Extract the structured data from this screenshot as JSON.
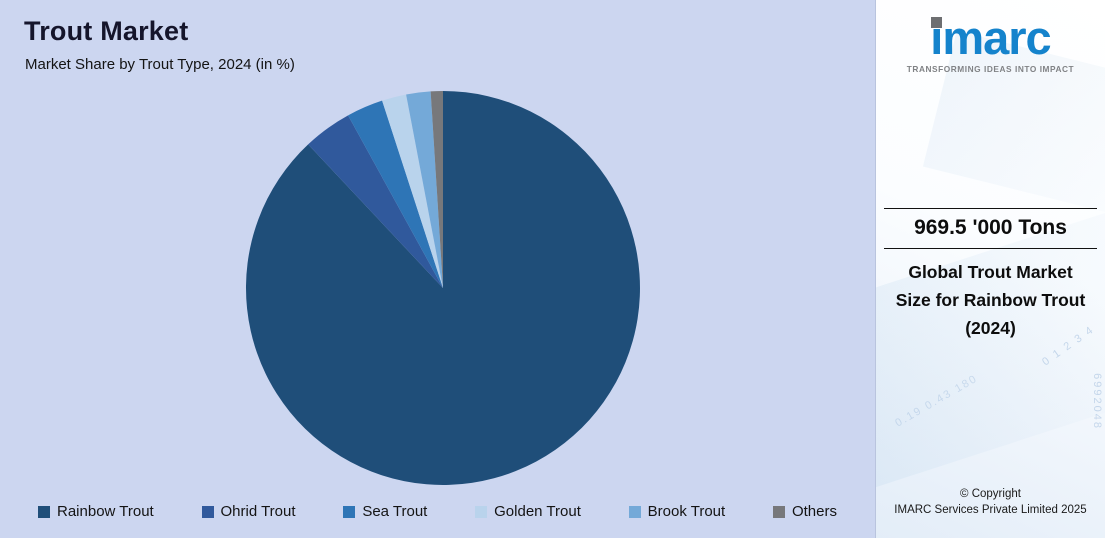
{
  "header": {
    "title": "Trout Market",
    "subtitle": "Market Share by Trout Type, 2024 (in %)"
  },
  "chart_data": {
    "type": "pie",
    "title": "Trout Market",
    "subtitle": "Market Share by Trout Type, 2024 (in %)",
    "categories": [
      "Rainbow Trout",
      "Ohrid Trout",
      "Sea Trout",
      "Golden Trout",
      "Brook Trout",
      "Others"
    ],
    "values": [
      88,
      4,
      3,
      2,
      2,
      1
    ],
    "colors": [
      "#1f4e79",
      "#30599c",
      "#2e75b6",
      "#b9d3ec",
      "#74a9d8",
      "#77787b"
    ],
    "start_angle_deg": 0,
    "direction": "clockwise",
    "legend_position": "bottom",
    "background": "#ccd6f0"
  },
  "sidebar": {
    "logo_text": "imarc",
    "tagline": "TRANSFORMING IDEAS INTO IMPACT",
    "stat_value": "969.5 '000 Tons",
    "stat_label_line1": "Global Trout Market",
    "stat_label_line2": "Size for Rainbow Trout",
    "stat_label_line3": "(2024)",
    "copyright_line1": "© Copyright",
    "copyright_line2": "IMARC Services Private Limited 2025",
    "decor_numbers": [
      "0 1 2 3 4",
      "6992048",
      "0.19 0.43 180"
    ]
  },
  "colors": {
    "chart_bg": "#ccd6f0",
    "accent_navy": "#1f4e79",
    "logo_blue": "#1583cc"
  }
}
